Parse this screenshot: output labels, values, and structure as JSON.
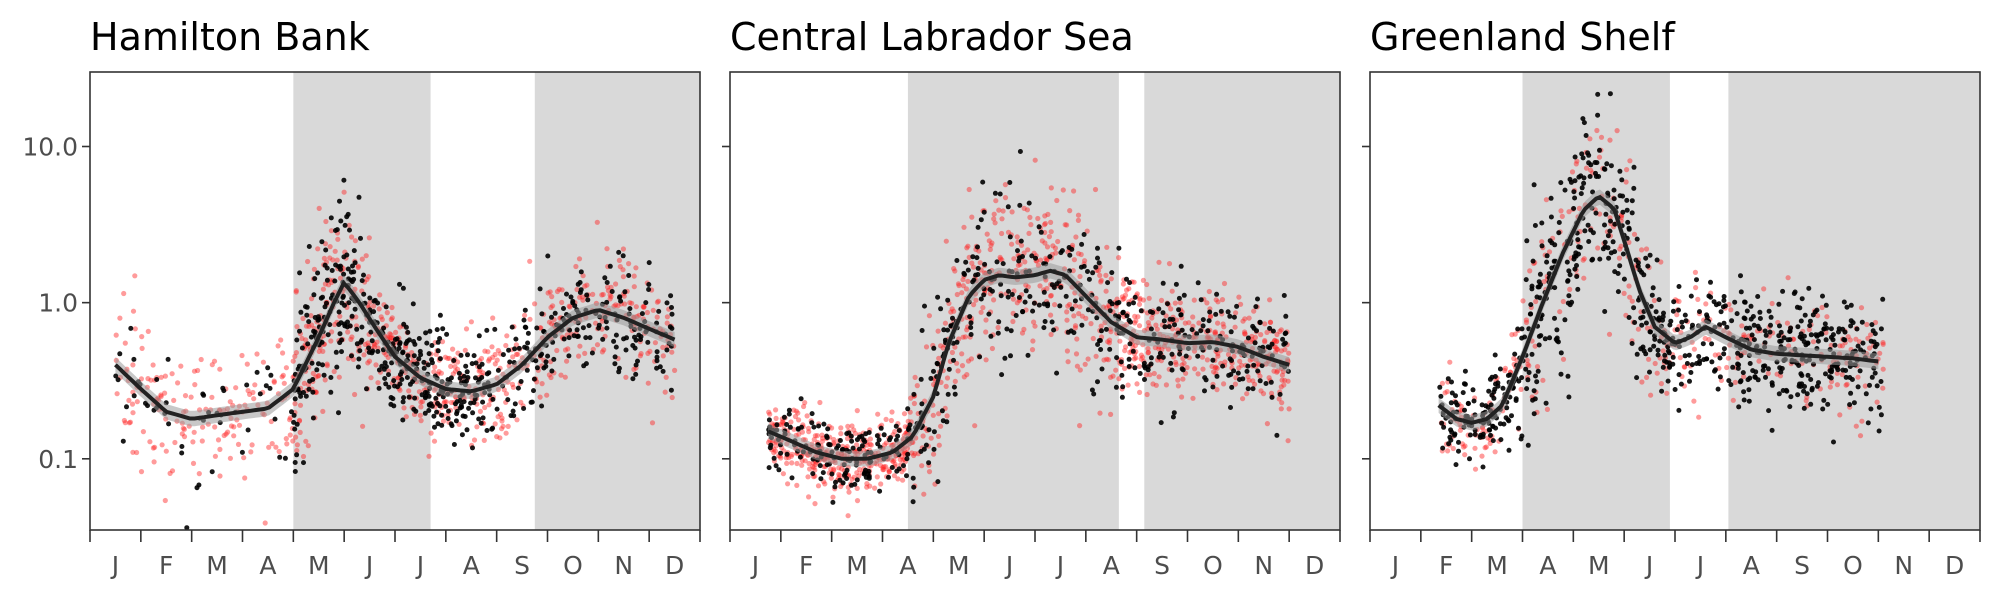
{
  "chart_data": [
    {
      "type": "scatter",
      "title": "Hamilton Bank",
      "y_scale": "log10",
      "ylim": [
        0.035,
        30
      ],
      "y_ticks": [
        "10.0",
        "1.0",
        "0.1"
      ],
      "y_tick_values": [
        10,
        1,
        0.1
      ],
      "x_months": [
        "J",
        "F",
        "M",
        "A",
        "M",
        "J",
        "J",
        "A",
        "S",
        "O",
        "N",
        "D"
      ],
      "shaded_periods": [
        [
          4.0,
          6.7
        ],
        [
          8.75,
          12.0
        ]
      ],
      "series": [
        {
          "color": "#ff2222",
          "style": "points"
        },
        {
          "color": "#000000",
          "style": "points"
        }
      ],
      "trend": {
        "x": [
          0.5,
          1.0,
          1.5,
          2.0,
          2.5,
          3.0,
          3.5,
          4.0,
          4.5,
          4.8,
          5.0,
          5.3,
          5.6,
          6.0,
          6.5,
          7.0,
          7.5,
          8.0,
          8.5,
          9.0,
          9.5,
          10.0,
          10.5,
          11.0,
          11.5
        ],
        "y": [
          0.4,
          0.28,
          0.2,
          0.18,
          0.19,
          0.2,
          0.21,
          0.28,
          0.6,
          1.0,
          1.35,
          1.0,
          0.7,
          0.45,
          0.33,
          0.28,
          0.27,
          0.3,
          0.4,
          0.6,
          0.8,
          0.9,
          0.8,
          0.68,
          0.58
        ]
      },
      "clouds": [
        {
          "x": [
            0.5,
            4.0
          ],
          "center": 0.16,
          "spread": 0.38,
          "n_red": 170,
          "n_black": 50
        },
        {
          "x": [
            4.0,
            5.5
          ],
          "center": 1.3,
          "spread": 0.5,
          "n_red": 170,
          "n_black": 160
        },
        {
          "x": [
            5.5,
            7.7
          ],
          "center": 0.35,
          "spread": 0.3,
          "n_red": 190,
          "n_black": 210
        },
        {
          "x": [
            7.7,
            11.5
          ],
          "center": 0.75,
          "spread": 0.35,
          "n_red": 260,
          "n_black": 200
        }
      ]
    },
    {
      "type": "scatter",
      "title": "Central Labrador Sea",
      "y_scale": "log10",
      "ylim": [
        0.035,
        30
      ],
      "y_ticks": [
        "10.0",
        "1.0",
        "0.1"
      ],
      "y_tick_values": [
        10,
        1,
        0.1
      ],
      "x_months": [
        "J",
        "F",
        "M",
        "A",
        "M",
        "J",
        "J",
        "A",
        "S",
        "O",
        "N",
        "D"
      ],
      "shaded_periods": [
        [
          3.5,
          7.65
        ],
        [
          8.15,
          12.0
        ]
      ],
      "series": [
        {
          "color": "#ff2222",
          "style": "points"
        },
        {
          "color": "#000000",
          "style": "points"
        }
      ],
      "trend": {
        "x": [
          0.75,
          1.2,
          1.7,
          2.2,
          2.7,
          3.2,
          3.6,
          4.0,
          4.3,
          4.7,
          5.0,
          5.3,
          5.6,
          6.0,
          6.3,
          6.6,
          7.0,
          7.5,
          8.0,
          8.5,
          9.0,
          9.5,
          10.0,
          10.5,
          11.0
        ],
        "y": [
          0.15,
          0.13,
          0.11,
          0.1,
          0.1,
          0.11,
          0.14,
          0.25,
          0.55,
          1.1,
          1.4,
          1.5,
          1.45,
          1.5,
          1.6,
          1.5,
          1.1,
          0.75,
          0.6,
          0.58,
          0.55,
          0.56,
          0.52,
          0.45,
          0.4
        ]
      },
      "clouds": [
        {
          "x": [
            0.75,
            3.6
          ],
          "center": 0.095,
          "spread": 0.22,
          "n_red": 380,
          "n_black": 150
        },
        {
          "x": [
            3.6,
            7.3
          ],
          "center": 1.6,
          "spread": 0.5,
          "n_red": 330,
          "n_black": 200
        },
        {
          "x": [
            7.3,
            11.0
          ],
          "center": 0.5,
          "spread": 0.33,
          "n_red": 390,
          "n_black": 190
        }
      ]
    },
    {
      "type": "scatter",
      "title": "Greenland Shelf",
      "y_scale": "log10",
      "ylim": [
        0.035,
        30
      ],
      "y_ticks": [
        "10.0",
        "1.0",
        "0.1"
      ],
      "y_tick_values": [
        10,
        1,
        0.1
      ],
      "x_months": [
        "J",
        "F",
        "M",
        "A",
        "M",
        "J",
        "J",
        "A",
        "S",
        "O",
        "N",
        "D"
      ],
      "shaded_periods": [
        [
          3.0,
          5.9
        ],
        [
          7.05,
          12.0
        ]
      ],
      "series": [
        {
          "color": "#ff2222",
          "style": "points"
        },
        {
          "color": "#000000",
          "style": "points"
        }
      ],
      "trend": {
        "x": [
          1.35,
          1.7,
          2.0,
          2.3,
          2.6,
          3.0,
          3.4,
          3.8,
          4.2,
          4.5,
          4.8,
          5.0,
          5.3,
          5.6,
          6.0,
          6.3,
          6.6,
          7.0,
          7.5,
          8.0,
          8.5,
          9.0,
          9.5,
          10.0
        ],
        "y": [
          0.22,
          0.18,
          0.17,
          0.18,
          0.22,
          0.45,
          1.0,
          2.1,
          3.9,
          4.8,
          4.0,
          2.5,
          1.2,
          0.7,
          0.55,
          0.6,
          0.7,
          0.6,
          0.5,
          0.47,
          0.46,
          0.45,
          0.44,
          0.42
        ]
      },
      "clouds": [
        {
          "x": [
            1.35,
            2.9
          ],
          "center": 0.18,
          "spread": 0.25,
          "n_red": 80,
          "n_black": 130
        },
        {
          "x": [
            2.9,
            5.5
          ],
          "center": 3.0,
          "spread": 0.55,
          "n_red": 120,
          "n_black": 240
        },
        {
          "x": [
            5.5,
            10.1
          ],
          "center": 0.6,
          "spread": 0.35,
          "n_red": 180,
          "n_black": 390
        }
      ]
    }
  ]
}
